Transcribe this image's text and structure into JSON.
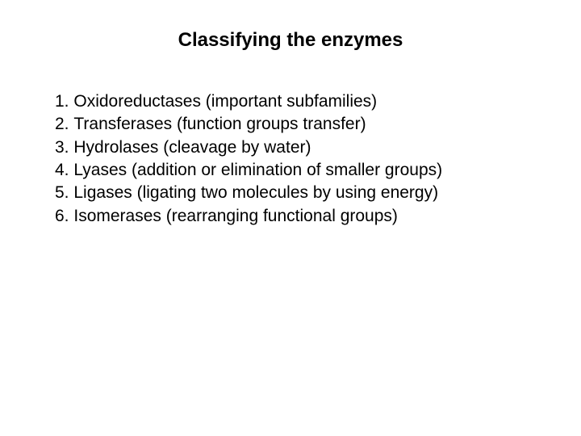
{
  "slide": {
    "title": "Classifying the enzymes",
    "title_fontsize": 24,
    "title_fontweight": "bold",
    "body_fontsize": 21,
    "line_height": 1.35,
    "background_color": "#ffffff",
    "text_color": "#000000",
    "items": [
      {
        "num": "1. ",
        "text": "Oxidoreductases (important subfamilies)"
      },
      {
        "num": "2. ",
        "text": "Transferases (function groups transfer)"
      },
      {
        "num": "3. ",
        "text": "Hydrolases (cleavage by water)"
      },
      {
        "num": "4. ",
        "text": "Lyases (addition or elimination of smaller groups)"
      },
      {
        "num": "5. ",
        "text": "Ligases (ligating two molecules by using energy)"
      },
      {
        "num": "6. ",
        "text": "Isomerases (rearranging functional groups)"
      }
    ]
  }
}
